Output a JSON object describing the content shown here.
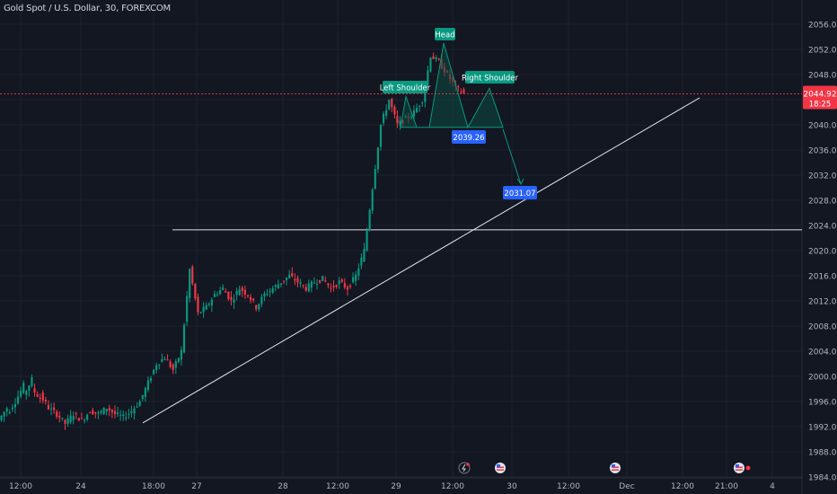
{
  "title": "Gold Spot / U.S. Dollar, 30, FOREXCOM",
  "colors": {
    "background": "#131722",
    "grid": "#1e222d",
    "axis_text": "#b2b5be",
    "up": "#089981",
    "down": "#f23645",
    "label_bg": "#089981",
    "target_bg": "#2962ff",
    "trendline": "#e0e3eb",
    "current_price": "#f23645",
    "pattern_fill": "#0b4b40",
    "pattern_stroke": "#089981"
  },
  "current_price": {
    "value": "2044.92",
    "countdown": "18:25"
  },
  "pattern_labels": {
    "left_shoulder": "Left Shoulder",
    "head": "Head",
    "right_shoulder": "Right Shoulder"
  },
  "targets": {
    "first": "2039.26",
    "second": "2031.07"
  },
  "event_icons": [
    "flash-icon",
    "us-flag-icon",
    "us-flag-icon",
    "us-flag-icon"
  ],
  "chart_data": {
    "type": "candlestick",
    "title": "Gold Spot / U.S. Dollar, 30, FOREXCOM",
    "y_axis": {
      "ticks": [
        "2056.00",
        "2052.00",
        "2048.00",
        "2044.00",
        "2040.00",
        "2036.00",
        "2032.00",
        "2028.00",
        "2024.00",
        "2020.00",
        "2016.00",
        "2012.00",
        "2008.00",
        "2004.00",
        "2000.00",
        "1996.00",
        "1992.00",
        "1988.00",
        "1984.00"
      ],
      "range": [
        1984,
        2057
      ],
      "position": "right"
    },
    "x_axis": {
      "ticks": [
        "12:00",
        "24",
        "18:00",
        "27",
        "28",
        "12:00",
        "29",
        "12:00",
        "30",
        "12:00",
        "Dec",
        "12:00",
        "21:00",
        "4"
      ]
    },
    "grid": true,
    "horizontal_level": 2023.3,
    "trendline": {
      "start": [
        "Nov 24 20:00",
        1992.6
      ],
      "end": [
        "Dec 1 05:00",
        2044.3
      ]
    },
    "projection": {
      "from_price": 2039.26,
      "to_price": 2031.07
    },
    "head_and_shoulders": {
      "left_shoulder": 2044.5,
      "head": 2053.0,
      "right_shoulder": 2045.8,
      "neckline": 2039.6
    },
    "price_path": [
      [
        1993,
        1995
      ],
      [
        1994,
        1996
      ],
      [
        1996,
        1998.5
      ],
      [
        1997,
        1999.5
      ],
      [
        1998,
        1996.5
      ],
      [
        1997,
        1995
      ],
      [
        1995,
        1994
      ],
      [
        1994,
        1992.5
      ],
      [
        1992.5,
        1994
      ],
      [
        1994,
        1993
      ],
      [
        1993,
        1994.5
      ],
      [
        1994.5,
        1994
      ],
      [
        1994,
        1995
      ],
      [
        1995,
        1994
      ],
      [
        1994,
        1993.5
      ],
      [
        1993.5,
        1994.5
      ],
      [
        1994.5,
        1996
      ],
      [
        1996,
        1999
      ],
      [
        1999,
        2002
      ],
      [
        2002,
        2003
      ],
      [
        2003,
        2001
      ],
      [
        2001,
        2004
      ],
      [
        2004,
        2017
      ],
      [
        2017,
        2010
      ],
      [
        2010,
        2011
      ],
      [
        2011,
        2013
      ],
      [
        2013,
        2014
      ],
      [
        2014,
        2012
      ],
      [
        2012,
        2014
      ],
      [
        2014,
        2013
      ],
      [
        2013,
        2011
      ],
      [
        2011,
        2013
      ],
      [
        2013,
        2014
      ],
      [
        2014,
        2015
      ],
      [
        2015,
        2016
      ],
      [
        2016,
        2015
      ],
      [
        2015,
        2014
      ],
      [
        2014,
        2015
      ],
      [
        2015,
        2015.5
      ],
      [
        2015.5,
        2014
      ],
      [
        2014,
        2015
      ],
      [
        2015,
        2014
      ],
      [
        2014,
        2016
      ],
      [
        2016,
        2020
      ],
      [
        2020,
        2030
      ],
      [
        2030,
        2040
      ],
      [
        2040,
        2044
      ],
      [
        2044,
        2040
      ],
      [
        2040,
        2041
      ],
      [
        2041,
        2042
      ],
      [
        2042,
        2044
      ],
      [
        2044,
        2051
      ],
      [
        2051,
        2050
      ],
      [
        2050,
        2048
      ],
      [
        2048,
        2046
      ],
      [
        2046,
        2045
      ]
    ]
  }
}
